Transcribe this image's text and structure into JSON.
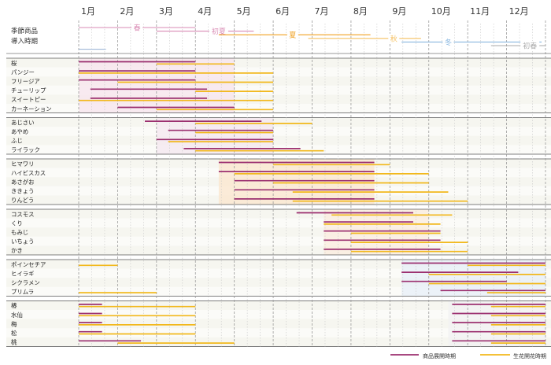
{
  "chart_data": {
    "type": "gantt",
    "title": "",
    "months": [
      "1月",
      "2月",
      "3月",
      "4月",
      "5月",
      "6月",
      "7月",
      "8月",
      "9月",
      "10月",
      "11月",
      "12月"
    ],
    "header_label_lines": [
      "季節商品",
      "導入時期"
    ],
    "seasons": [
      {
        "name": "春",
        "color": "#d98bb4",
        "start": 0.0,
        "end": 3.0,
        "row": 0,
        "label_at": 1.5
      },
      {
        "name": "初夏",
        "color": "#d98bb4",
        "start": 2.0,
        "end": 4.5,
        "row": 1,
        "label_at": 3.6
      },
      {
        "name": "夏",
        "color": "#f0a020",
        "start": 3.6,
        "end": 7.5,
        "row": 2,
        "label_at": 5.5
      },
      {
        "name": "秋",
        "color": "#f5c060",
        "start": 5.9,
        "end": 8.8,
        "row": 3,
        "label_at": 8.1
      },
      {
        "name": "冬",
        "color": "#8ab8e0",
        "start": 8.3,
        "end": 11.9,
        "row": 4,
        "label_at": 9.5
      },
      {
        "name": "初春",
        "color": "#a9a9a9",
        "start": 10.6,
        "end": 12.0,
        "row": 5,
        "label_at": 11.6
      },
      {
        "name": "",
        "color": "#a0b8d8",
        "start": 0.0,
        "end": 0.7,
        "row": 6,
        "label_at": 0.3
      }
    ],
    "groups": [
      {
        "shade": {
          "start": 0.0,
          "end": 4.0,
          "color": "#f8e6ee"
        },
        "items": [
          {
            "name": "桜",
            "product": [
              [
                0.0,
                3.0
              ]
            ],
            "bloom": [
              [
                2.0,
                4.0
              ]
            ]
          },
          {
            "name": "パンジー",
            "product": [
              [
                0.0,
                3.0
              ]
            ],
            "bloom": [
              [
                0.0,
                5.0
              ]
            ]
          },
          {
            "name": "フリージア",
            "product": [
              [
                0.0,
                3.0
              ]
            ],
            "bloom": [
              [
                1.0,
                5.0
              ]
            ]
          },
          {
            "name": "チューリップ",
            "product": [
              [
                0.3,
                3.3
              ]
            ],
            "bloom": [
              [
                3.0,
                5.0
              ]
            ]
          },
          {
            "name": "スイートピー",
            "product": [
              [
                0.3,
                3.3
              ]
            ],
            "bloom": [
              [
                0.0,
                5.0
              ]
            ]
          },
          {
            "name": "カーネーション",
            "product": [
              [
                1.0,
                4.0
              ]
            ],
            "bloom": [
              [
                2.0,
                5.0
              ]
            ]
          }
        ]
      },
      {
        "shade": {
          "start": 2.0,
          "end": 5.0,
          "color": "#f5e8f0"
        },
        "items": [
          {
            "name": "あじさい",
            "product": [
              [
                1.7,
                4.7
              ]
            ],
            "bloom": [
              [
                3.0,
                6.0
              ]
            ]
          },
          {
            "name": "あやめ",
            "product": [
              [
                2.3,
                5.0
              ]
            ],
            "bloom": [
              [
                3.0,
                5.0
              ]
            ]
          },
          {
            "name": "ふじ",
            "product": [
              [
                2.0,
                5.0
              ]
            ],
            "bloom": [
              [
                2.3,
                5.0
              ]
            ]
          },
          {
            "name": "ライラック",
            "product": [
              [
                2.7,
                5.7
              ]
            ],
            "bloom": [
              [
                3.0,
                6.3
              ]
            ]
          }
        ]
      },
      {
        "shade": {
          "start": 3.6,
          "end": 7.6,
          "color": "#fbe7d0"
        },
        "items": [
          {
            "name": "ヒマワリ",
            "product": [
              [
                3.6,
                7.6
              ]
            ],
            "bloom": [
              [
                5.0,
                8.0
              ]
            ]
          },
          {
            "name": "ハイビスカス",
            "product": [
              [
                3.6,
                7.6
              ]
            ],
            "bloom": [
              [
                4.0,
                9.0
              ]
            ]
          },
          {
            "name": "あさがお",
            "product": [
              [
                4.0,
                7.6
              ]
            ],
            "bloom": [
              [
                5.0,
                9.0
              ]
            ]
          },
          {
            "name": "ききょう",
            "product": [
              [
                4.0,
                7.6
              ]
            ],
            "bloom": [
              [
                5.5,
                9.5
              ]
            ]
          },
          {
            "name": "りんどう",
            "product": [
              [
                4.0,
                7.6
              ]
            ],
            "bloom": [
              [
                5.5,
                10.0
              ]
            ]
          }
        ]
      },
      {
        "shade": {
          "start": 6.3,
          "end": 9.0,
          "color": "#fbeee0"
        },
        "items": [
          {
            "name": "コスモス",
            "product": [
              [
                5.6,
                8.6
              ]
            ],
            "bloom": [
              [
                6.5,
                9.6
              ]
            ]
          },
          {
            "name": "くり",
            "product": [
              [
                6.3,
                8.6
              ]
            ],
            "bloom": [
              [
                6.3,
                9.3
              ]
            ]
          },
          {
            "name": "もみじ",
            "product": [
              [
                6.3,
                9.3
              ]
            ],
            "bloom": [
              [
                7.0,
                9.3
              ]
            ]
          },
          {
            "name": "いちょう",
            "product": [
              [
                6.3,
                9.3
              ]
            ],
            "bloom": [
              [
                7.0,
                10.0
              ]
            ]
          },
          {
            "name": "かき",
            "product": [
              [
                6.3,
                9.3
              ]
            ],
            "bloom": [
              [
                7.0,
                10.0
              ]
            ]
          }
        ]
      },
      {
        "shade": {
          "start": 8.3,
          "end": 12.0,
          "color": "#e8f0f8"
        },
        "items": [
          {
            "name": "ポインセチア",
            "product": [
              [
                8.3,
                12.0
              ]
            ],
            "bloom": [
              [
                0.0,
                1.0
              ],
              [
                10.0,
                12.0
              ]
            ]
          },
          {
            "name": "ヒイラギ",
            "product": [
              [
                8.3,
                11.3
              ]
            ],
            "bloom": [
              [
                9.0,
                12.0
              ]
            ]
          },
          {
            "name": "シクラメン",
            "product": [
              [
                8.3,
                11.0
              ]
            ],
            "bloom": [
              [
                9.0,
                12.0
              ]
            ]
          },
          {
            "name": "プリムラ",
            "product": [
              [
                9.3,
                12.0
              ]
            ],
            "bloom": [
              [
                0.0,
                2.0
              ],
              [
                10.5,
                12.0
              ]
            ]
          }
        ]
      },
      {
        "shade": {
          "start": 9.5,
          "end": 12.0,
          "color": "#f3f3f3"
        },
        "items": [
          {
            "name": "椿",
            "product": [
              [
                0.0,
                0.6
              ],
              [
                9.6,
                12.0
              ]
            ],
            "bloom": [
              [
                0.0,
                3.0
              ],
              [
                10.6,
                12.0
              ]
            ]
          },
          {
            "name": "水仙",
            "product": [
              [
                0.0,
                0.6
              ],
              [
                9.6,
                12.0
              ]
            ],
            "bloom": [
              [
                0.0,
                3.0
              ],
              [
                10.6,
                12.0
              ]
            ]
          },
          {
            "name": "梅",
            "product": [
              [
                0.0,
                0.6
              ],
              [
                9.6,
                12.0
              ]
            ],
            "bloom": [
              [
                0.0,
                3.0
              ],
              [
                10.6,
                12.0
              ]
            ]
          },
          {
            "name": "松",
            "product": [
              [
                0.0,
                0.6
              ],
              [
                9.6,
                12.0
              ]
            ],
            "bloom": [
              [
                0.0,
                3.0
              ],
              [
                10.6,
                12.0
              ]
            ]
          },
          {
            "name": "桃",
            "product": [
              [
                0.0,
                1.6
              ],
              [
                9.6,
                12.0
              ]
            ],
            "bloom": [
              [
                1.0,
                4.0
              ],
              [
                10.6,
                12.0
              ]
            ]
          }
        ]
      }
    ],
    "legend": [
      {
        "key": "product",
        "label": "商品展開時期",
        "color": "#9b2f6f"
      },
      {
        "key": "bloom",
        "label": "生花開花時期",
        "color": "#f2b81b"
      }
    ]
  }
}
